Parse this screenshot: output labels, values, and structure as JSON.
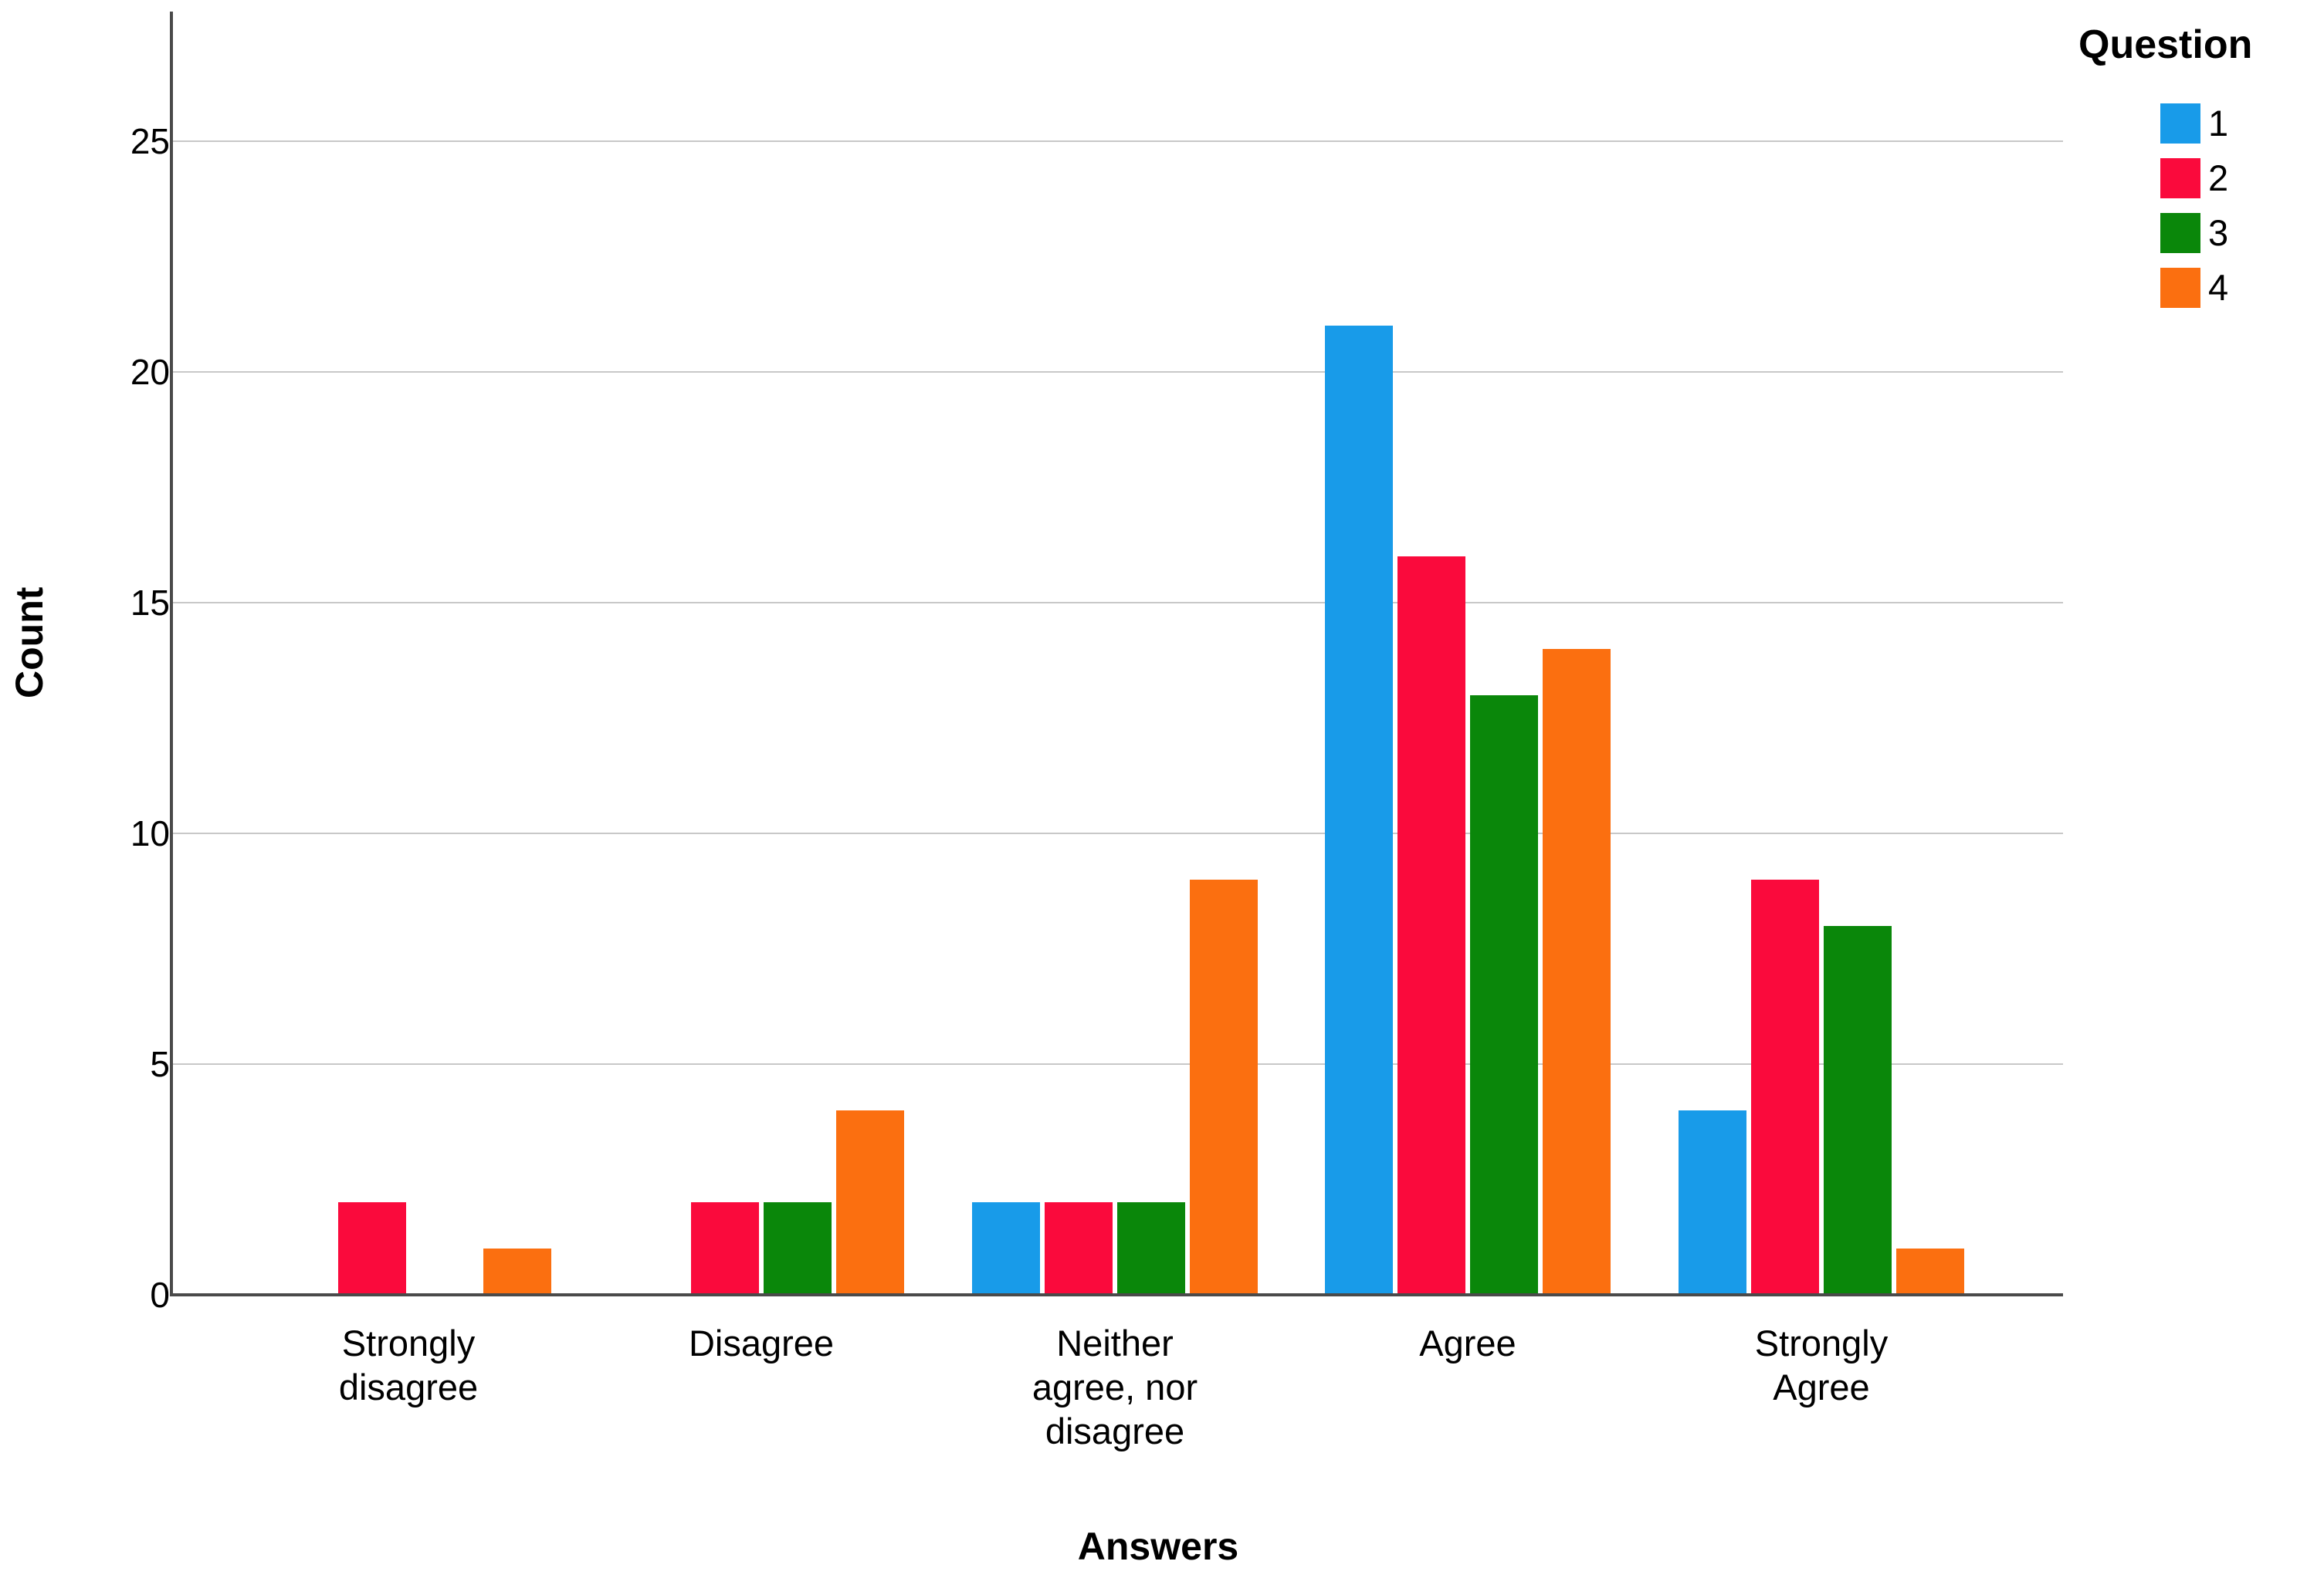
{
  "chart_data": {
    "type": "bar",
    "title": "",
    "xlabel": "Answers",
    "ylabel": "Count",
    "legend_title": "Question",
    "legend_position": "top-right",
    "grid": "horizontal gridlines at each y tick",
    "ylim": [
      0,
      27.8
    ],
    "yticks": [
      0,
      5,
      10,
      15,
      20,
      25
    ],
    "categories": [
      "Strongly disagree",
      "Disagree",
      "Neither agree, nor disagree",
      "Agree",
      "Strongly Agree"
    ],
    "category_label_lines": [
      [
        "Strongly",
        "disagree"
      ],
      [
        "Disagree"
      ],
      [
        "Neither",
        "agree, nor",
        "disagree"
      ],
      [
        "Agree"
      ],
      [
        "Strongly",
        "Agree"
      ]
    ],
    "series": [
      {
        "name": "1",
        "color": "#189BE9",
        "values": [
          0,
          0,
          2,
          21,
          4
        ]
      },
      {
        "name": "2",
        "color": "#FA0A3C",
        "values": [
          2,
          2,
          2,
          16,
          9
        ]
      },
      {
        "name": "3",
        "color": "#0A870A",
        "values": [
          0,
          2,
          2,
          13,
          8
        ]
      },
      {
        "name": "4",
        "color": "#FB6F10",
        "values": [
          1,
          4,
          9,
          14,
          1
        ]
      }
    ],
    "colors": {
      "gridline": "#C8C8C8",
      "axis": "#4A4A4A",
      "text": "#000000",
      "background": "#FFFFFF"
    }
  }
}
